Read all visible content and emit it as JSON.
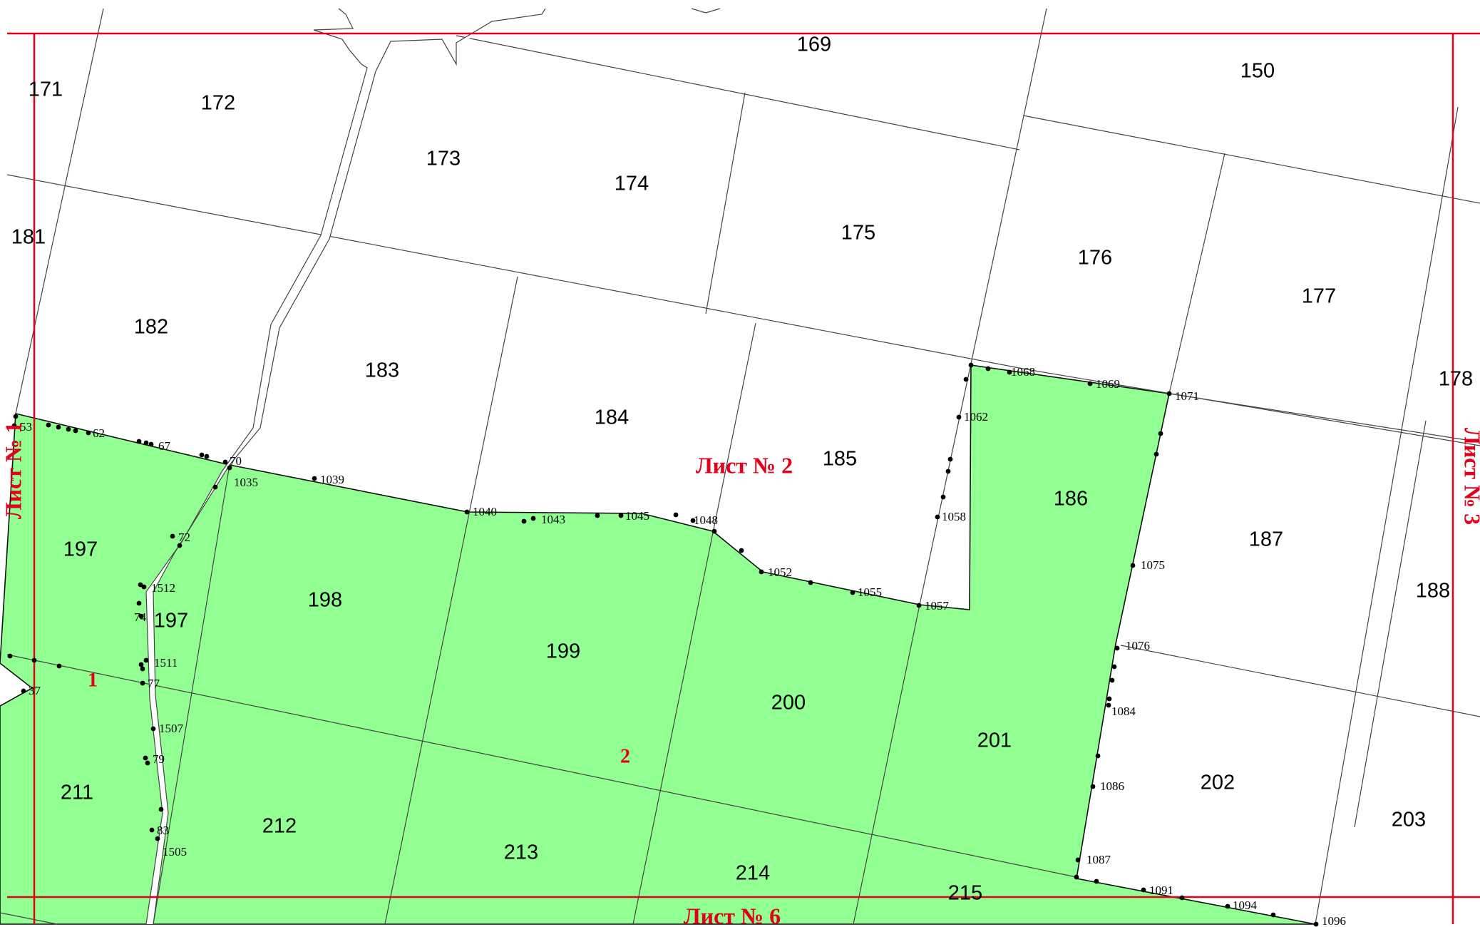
{
  "colors": {
    "land": "#91ff91",
    "frame": "#e3001b",
    "line": "#444444",
    "point": "#000000"
  },
  "sheets": {
    "left": "Лист № 1",
    "center": "Лист № 2",
    "right": "Лист № 3",
    "bottom": "Лист № 6"
  },
  "zones": [
    "1",
    "2"
  ],
  "parcels": [
    "171",
    "172",
    "169",
    "150",
    "173",
    "174",
    "175",
    "176",
    "177",
    "181",
    "182",
    "183",
    "184",
    "185",
    "186",
    "187",
    "178",
    "188",
    "197",
    "197",
    "198",
    "199",
    "200",
    "201",
    "202",
    "203",
    "211",
    "212",
    "213",
    "214",
    "215"
  ],
  "points": [
    "53",
    "62",
    "67",
    "70",
    "1035",
    "1039",
    "72",
    "1512",
    "74",
    "1511",
    "77",
    "37",
    "1507",
    "79",
    "83",
    "1505",
    "1040",
    "1043",
    "1045",
    "1048",
    "1052",
    "1055",
    "1057",
    "1058",
    "1062",
    "1068",
    "1069",
    "1071",
    "1075",
    "1076",
    "1084",
    "1086",
    "1087",
    "1091",
    "1094",
    "1096"
  ]
}
